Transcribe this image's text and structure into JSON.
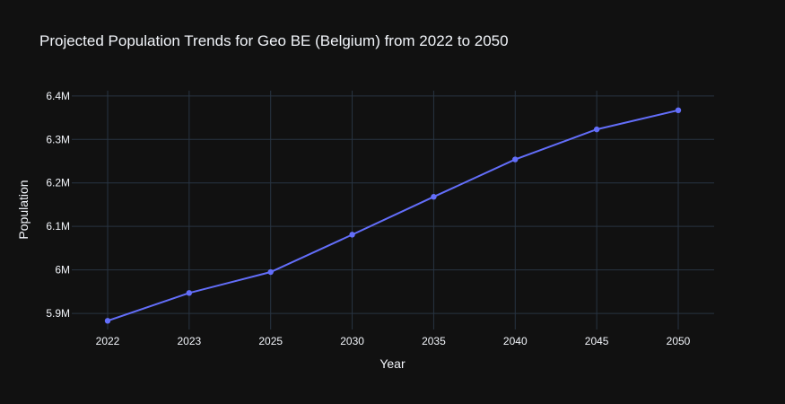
{
  "colors": {
    "background": "#111111",
    "grid": "#283442",
    "text": "#f2f5fa",
    "series": "#636efa"
  },
  "chart_data": {
    "type": "line",
    "title": "Projected Population Trends for Geo BE (Belgium) from 2022 to 2050",
    "xlabel": "Year",
    "ylabel": "Population",
    "categories": [
      "2022",
      "2023",
      "2025",
      "2030",
      "2035",
      "2040",
      "2045",
      "2050"
    ],
    "series": [
      {
        "values": [
          5883000,
          5947000,
          5995000,
          6081000,
          6168000,
          6254000,
          6323000,
          6367000
        ]
      }
    ],
    "y_ticks": [
      {
        "value": 5900000,
        "label": "5.9M"
      },
      {
        "value": 6000000,
        "label": "6M"
      },
      {
        "value": 6100000,
        "label": "6.1M"
      },
      {
        "value": 6200000,
        "label": "6.2M"
      },
      {
        "value": 6300000,
        "label": "6.3M"
      },
      {
        "value": 6400000,
        "label": "6.4M"
      }
    ],
    "ylim": [
      5863000,
      6412000
    ],
    "grid": true,
    "legend": "none",
    "markers": true
  }
}
